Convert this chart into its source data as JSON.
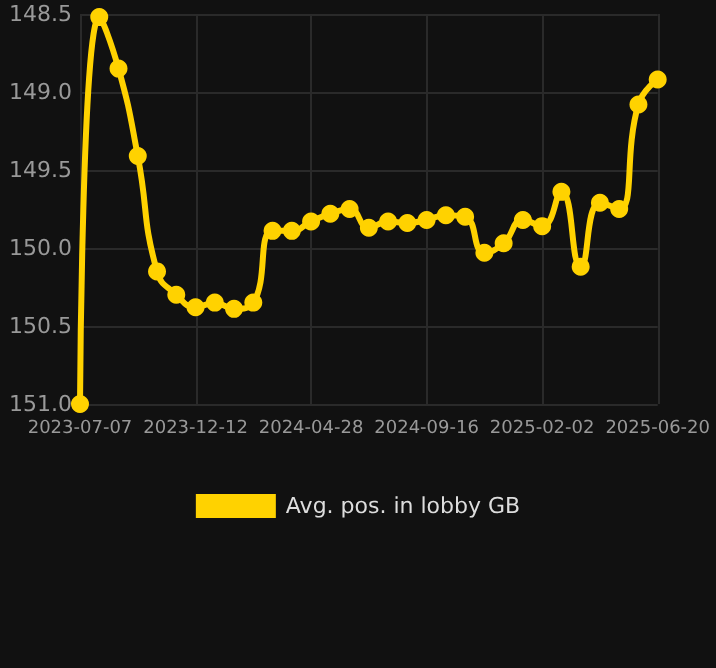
{
  "chart_data": {
    "type": "line",
    "categories": [
      "2023-07-07",
      null,
      null,
      null,
      null,
      null,
      "2023-12-12",
      null,
      null,
      null,
      null,
      null,
      "2024-04-28",
      null,
      null,
      null,
      null,
      null,
      "2024-09-16",
      null,
      null,
      null,
      null,
      null,
      "2025-02-02",
      null,
      null,
      null,
      null,
      null,
      "2025-06-20"
    ],
    "series": [
      {
        "name": "Avg. pos. in lobby GB",
        "color": "#ffd200",
        "values": [
          151.0,
          148.52,
          148.85,
          149.41,
          150.15,
          150.3,
          150.38,
          150.35,
          150.39,
          150.35,
          149.89,
          149.89,
          149.83,
          149.78,
          149.75,
          149.87,
          149.83,
          149.84,
          149.82,
          149.79,
          149.8,
          150.03,
          149.97,
          149.82,
          149.86,
          149.64,
          150.12,
          149.71,
          149.75,
          149.08,
          148.92
        ]
      }
    ],
    "ylim": [
      151.0,
      148.5
    ],
    "yticks": [
      {
        "value": 148.5,
        "label": "148.5"
      },
      {
        "value": 149,
        "label": "149.0"
      },
      {
        "value": 149.5,
        "label": "149.5"
      },
      {
        "value": 150,
        "label": "150.0"
      },
      {
        "value": 150.5,
        "label": "150.5"
      },
      {
        "value": 151,
        "label": "151.0"
      }
    ],
    "grid": true,
    "legend": "bottom",
    "marker": "circle",
    "line_style": "solid"
  }
}
